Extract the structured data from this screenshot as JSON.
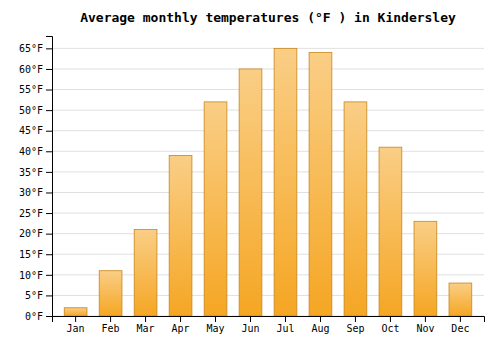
{
  "chart_data": {
    "type": "bar",
    "title": "Average monthly temperatures (°F ) in Kindersley",
    "categories": [
      "Jan",
      "Feb",
      "Mar",
      "Apr",
      "May",
      "Jun",
      "Jul",
      "Aug",
      "Sep",
      "Oct",
      "Nov",
      "Dec"
    ],
    "values": [
      2,
      11,
      21,
      39,
      52,
      60,
      65,
      64,
      52,
      41,
      23,
      8
    ],
    "color": "#F5A623",
    "ylim": [
      0,
      68
    ],
    "yticks": [
      {
        "value": 0,
        "label": "0°F"
      },
      {
        "value": 5,
        "label": "5°F"
      },
      {
        "value": 10,
        "label": "10°F"
      },
      {
        "value": 15,
        "label": "15°F"
      },
      {
        "value": 20,
        "label": "20°F"
      },
      {
        "value": 25,
        "label": "25°F"
      },
      {
        "value": 30,
        "label": "30°F"
      },
      {
        "value": 35,
        "label": "35°F"
      },
      {
        "value": 40,
        "label": "40°F"
      },
      {
        "value": 45,
        "label": "45°F"
      },
      {
        "value": 50,
        "label": "50°F"
      },
      {
        "value": 55,
        "label": "55°F"
      },
      {
        "value": 60,
        "label": "60°F"
      },
      {
        "value": 65,
        "label": "65°F"
      }
    ],
    "grid": true
  }
}
